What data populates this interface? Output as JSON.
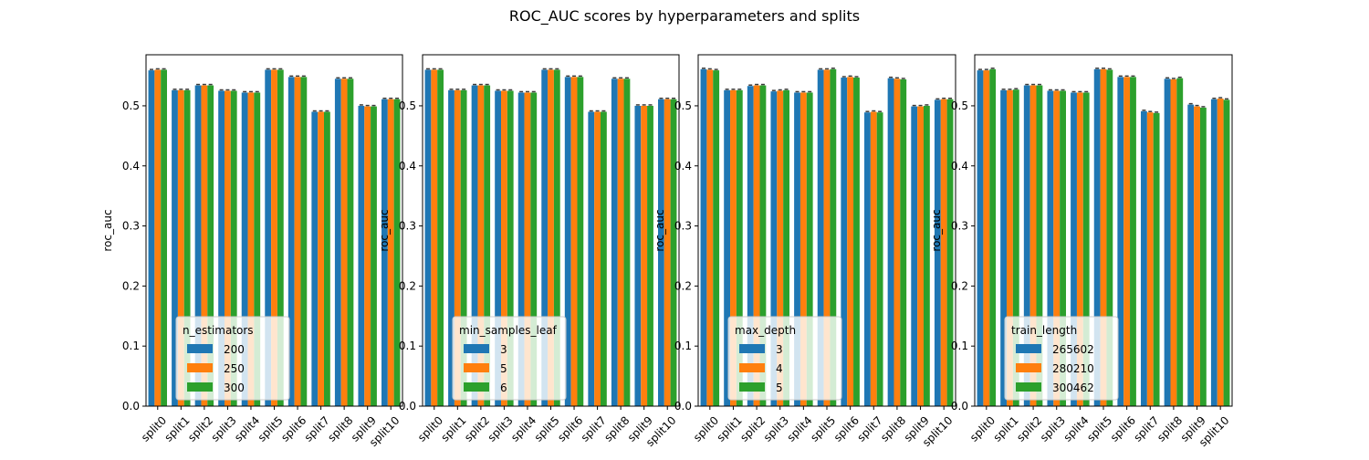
{
  "figure": {
    "title": "ROC_AUC scores by hyperparameters and splits"
  },
  "chart_data": [
    {
      "type": "bar",
      "title": "",
      "xlabel": "",
      "ylabel": "roc_auc",
      "ylim": [
        0,
        0.585
      ],
      "yticks": [
        "0.0",
        "0.1",
        "0.2",
        "0.3",
        "0.4",
        "0.5"
      ],
      "categories": [
        "split0",
        "split1",
        "split2",
        "split3",
        "split4",
        "split5",
        "split6",
        "split7",
        "split8",
        "split9",
        "split10"
      ],
      "legend": {
        "title": "n_estimators",
        "placement": "lower-left"
      },
      "series": [
        {
          "name": "200",
          "color": "#1f77b4",
          "values": [
            0.559,
            0.526,
            0.534,
            0.525,
            0.522,
            0.56,
            0.548,
            0.49,
            0.545,
            0.5,
            0.511
          ]
        },
        {
          "name": "250",
          "color": "#ff7f0e",
          "values": [
            0.56,
            0.526,
            0.534,
            0.525,
            0.522,
            0.56,
            0.548,
            0.49,
            0.545,
            0.499,
            0.511
          ]
        },
        {
          "name": "300",
          "color": "#2ca02c",
          "values": [
            0.56,
            0.526,
            0.534,
            0.525,
            0.522,
            0.56,
            0.548,
            0.49,
            0.545,
            0.499,
            0.511
          ]
        }
      ]
    },
    {
      "type": "bar",
      "title": "",
      "xlabel": "",
      "ylabel": "roc_auc",
      "ylim": [
        0,
        0.585
      ],
      "yticks": [
        "0.0",
        "0.1",
        "0.2",
        "0.3",
        "0.4",
        "0.5"
      ],
      "categories": [
        "split0",
        "split1",
        "split2",
        "split3",
        "split4",
        "split5",
        "split6",
        "split7",
        "split8",
        "split9",
        "split10"
      ],
      "legend": {
        "title": "min_samples_leaf",
        "placement": "lower-left"
      },
      "series": [
        {
          "name": "3",
          "color": "#1f77b4",
          "values": [
            0.56,
            0.526,
            0.534,
            0.525,
            0.522,
            0.56,
            0.548,
            0.49,
            0.545,
            0.5,
            0.511
          ]
        },
        {
          "name": "5",
          "color": "#ff7f0e",
          "values": [
            0.56,
            0.526,
            0.534,
            0.525,
            0.522,
            0.56,
            0.548,
            0.49,
            0.545,
            0.5,
            0.511
          ]
        },
        {
          "name": "6",
          "color": "#2ca02c",
          "values": [
            0.56,
            0.526,
            0.534,
            0.525,
            0.522,
            0.56,
            0.548,
            0.49,
            0.545,
            0.5,
            0.511
          ]
        }
      ]
    },
    {
      "type": "bar",
      "title": "",
      "xlabel": "",
      "ylabel": "roc_auc",
      "ylim": [
        0,
        0.585
      ],
      "yticks": [
        "0.0",
        "0.1",
        "0.2",
        "0.3",
        "0.4",
        "0.5"
      ],
      "categories": [
        "split0",
        "split1",
        "split2",
        "split3",
        "split4",
        "split5",
        "split6",
        "split7",
        "split8",
        "split9",
        "split10"
      ],
      "legend": {
        "title": "max_depth",
        "placement": "lower-left"
      },
      "series": [
        {
          "name": "3",
          "color": "#1f77b4",
          "values": [
            0.561,
            0.526,
            0.533,
            0.524,
            0.522,
            0.56,
            0.547,
            0.489,
            0.546,
            0.499,
            0.51
          ]
        },
        {
          "name": "4",
          "color": "#ff7f0e",
          "values": [
            0.56,
            0.526,
            0.534,
            0.525,
            0.522,
            0.56,
            0.548,
            0.49,
            0.545,
            0.499,
            0.511
          ]
        },
        {
          "name": "5",
          "color": "#2ca02c",
          "values": [
            0.559,
            0.526,
            0.534,
            0.526,
            0.522,
            0.561,
            0.547,
            0.489,
            0.544,
            0.5,
            0.511
          ]
        }
      ]
    },
    {
      "type": "bar",
      "title": "",
      "xlabel": "",
      "ylabel": "roc_auc",
      "ylim": [
        0,
        0.585
      ],
      "yticks": [
        "0.0",
        "0.1",
        "0.2",
        "0.3",
        "0.4",
        "0.5"
      ],
      "categories": [
        "split0",
        "split1",
        "split2",
        "split3",
        "split4",
        "split5",
        "split6",
        "split7",
        "split8",
        "split9",
        "split10"
      ],
      "legend": {
        "title": "train_length",
        "placement": "lower-left"
      },
      "series": [
        {
          "name": "265602",
          "color": "#1f77b4",
          "values": [
            0.559,
            0.526,
            0.534,
            0.525,
            0.522,
            0.561,
            0.548,
            0.491,
            0.545,
            0.502,
            0.511
          ]
        },
        {
          "name": "280210",
          "color": "#ff7f0e",
          "values": [
            0.559,
            0.526,
            0.534,
            0.525,
            0.522,
            0.561,
            0.548,
            0.489,
            0.544,
            0.499,
            0.512
          ]
        },
        {
          "name": "300462",
          "color": "#2ca02c",
          "values": [
            0.561,
            0.527,
            0.534,
            0.525,
            0.522,
            0.56,
            0.548,
            0.488,
            0.546,
            0.497,
            0.51
          ]
        }
      ]
    }
  ]
}
